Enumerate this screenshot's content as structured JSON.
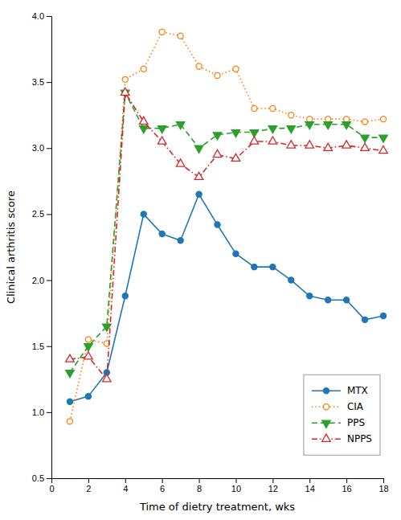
{
  "chart_data": {
    "type": "line",
    "xlabel": "Time of dietry treatment, wks",
    "ylabel": "Clinical arthritis score",
    "x": [
      1,
      2,
      3,
      4,
      5,
      6,
      7,
      8,
      9,
      10,
      11,
      12,
      13,
      14,
      15,
      16,
      17,
      18
    ],
    "series": [
      {
        "name": "MTX",
        "marker": "circle",
        "line_style": "solid",
        "values": [
          1.08,
          1.12,
          1.3,
          1.88,
          2.5,
          2.35,
          2.3,
          2.65,
          2.42,
          2.2,
          2.1,
          2.1,
          2.0,
          1.88,
          1.85,
          1.85,
          1.7,
          1.73
        ]
      },
      {
        "name": "CIA",
        "marker": "circle-open",
        "line_style": "dotted",
        "values": [
          0.93,
          1.55,
          1.52,
          3.52,
          3.6,
          3.88,
          3.85,
          3.62,
          3.55,
          3.6,
          3.3,
          3.3,
          3.25,
          3.22,
          3.22,
          3.22,
          3.2,
          3.22
        ]
      },
      {
        "name": "PPS",
        "marker": "triangle-down",
        "line_style": "dashed",
        "values": [
          1.3,
          1.5,
          1.65,
          3.42,
          3.15,
          3.15,
          3.18,
          3.0,
          3.1,
          3.12,
          3.12,
          3.15,
          3.15,
          3.18,
          3.18,
          3.18,
          3.08,
          3.08
        ]
      },
      {
        "name": "NPPS",
        "marker": "triangle-up-open",
        "line_style": "dashdot",
        "values": [
          1.4,
          1.42,
          1.25,
          3.42,
          3.2,
          3.05,
          2.88,
          2.78,
          2.95,
          2.92,
          3.05,
          3.05,
          3.02,
          3.02,
          3.0,
          3.02,
          3.0,
          2.98
        ]
      }
    ],
    "xlim": [
      0,
      18
    ],
    "xticks": [
      0,
      2,
      4,
      6,
      8,
      10,
      12,
      14,
      16,
      18
    ],
    "ylim": [
      0.5,
      4.0
    ],
    "yticks": [
      0.5,
      {
        "value": 1.0,
        "label": "1.0"
      },
      1.5,
      {
        "value": 2.0,
        "label": "2.0"
      },
      2.5,
      {
        "value": 3.0,
        "label": "3.0"
      },
      3.5,
      {
        "value": 4.0,
        "label": "4.0"
      }
    ],
    "grid": false,
    "legend": "lower right"
  }
}
